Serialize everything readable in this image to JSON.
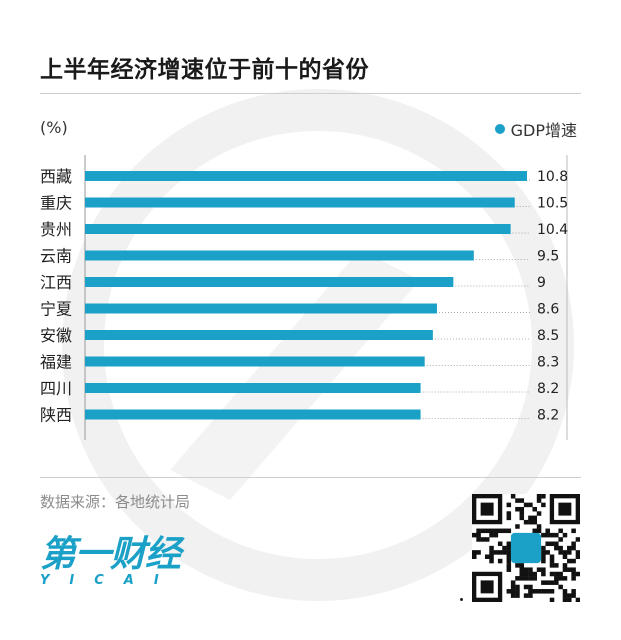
{
  "title": "上半年经济增速位于前十的省份",
  "unit_label": "(%)",
  "legend_label": "GDP增速",
  "source": "数据来源：各地统计局",
  "logo": {
    "cn": "第一财经",
    "en": "YICAI"
  },
  "colors": {
    "bar": "#1ba0c7",
    "text": "#222222",
    "muted": "#8c8c8c"
  },
  "chart_data": {
    "type": "bar",
    "orientation": "horizontal",
    "categories": [
      "西藏",
      "重庆",
      "贵州",
      "云南",
      "江西",
      "宁夏",
      "安徽",
      "福建",
      "四川",
      "陕西"
    ],
    "values": [
      10.8,
      10.5,
      10.4,
      9.5,
      9,
      8.6,
      8.5,
      8.3,
      8.2,
      8.2
    ],
    "value_labels": [
      "10.8",
      "10.5",
      "10.4",
      "9.5",
      "9",
      "8.6",
      "8.5",
      "8.3",
      "8.2",
      "8.2"
    ],
    "series": [
      {
        "name": "GDP增速",
        "values": [
          10.8,
          10.5,
          10.4,
          9.5,
          9,
          8.6,
          8.5,
          8.3,
          8.2,
          8.2
        ]
      }
    ],
    "legend_position": "top-right"
  }
}
